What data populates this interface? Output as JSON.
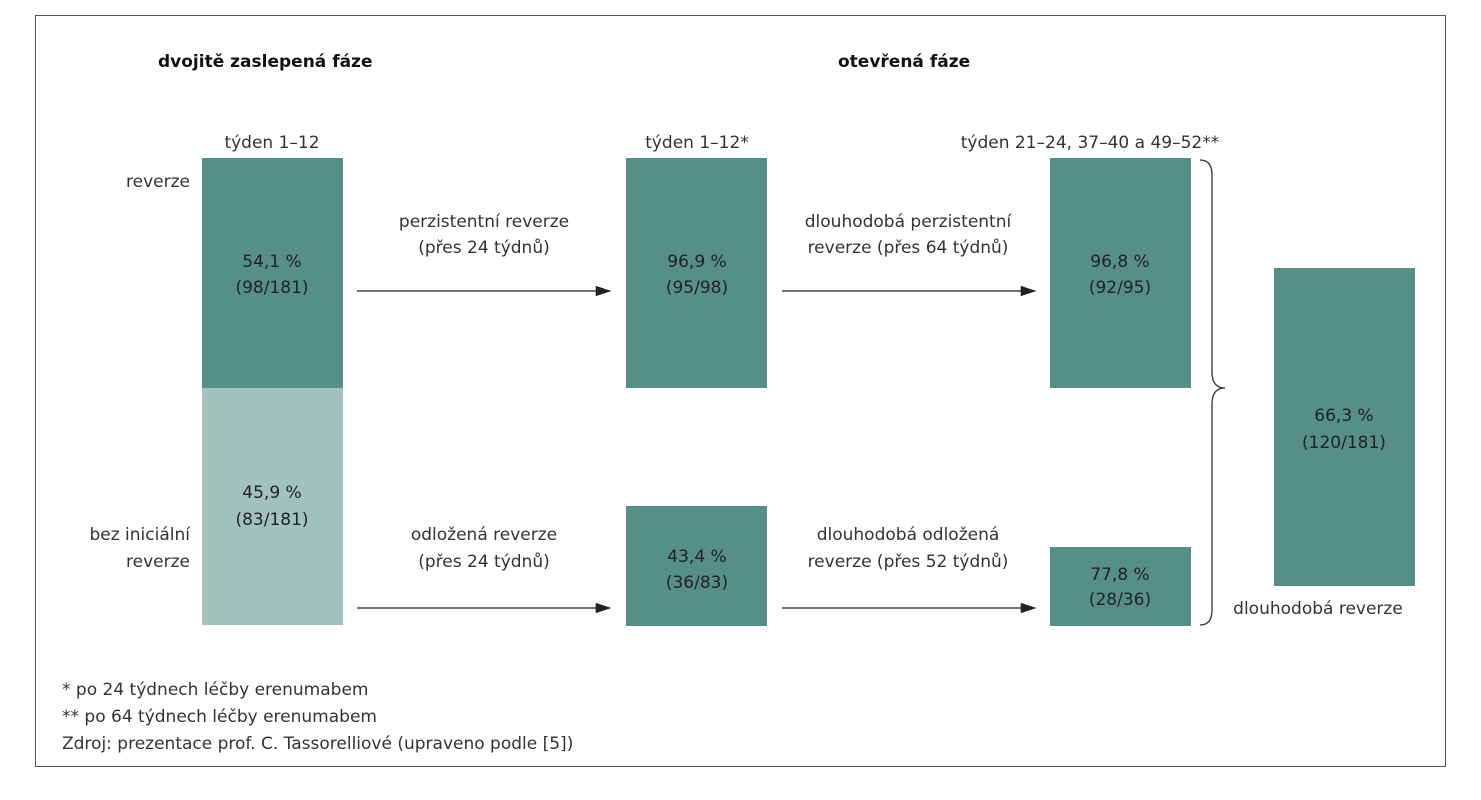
{
  "headers": [
    "dvojitě zaslepená fáze",
    "otevřená fáze"
  ],
  "columns": [
    "týden 1–12",
    "týden 1–12*",
    "týden 21–24, 37–40 a 49–52**"
  ],
  "rows": [
    [
      "reverze"
    ],
    [
      "bez iniciální",
      "reverze"
    ]
  ],
  "boxes": [
    [
      "54,1 %",
      "(98/181)"
    ],
    [
      "45,9 %",
      "(83/181)"
    ],
    [
      "96,9 %",
      "(95/98)"
    ],
    [
      "43,4 %",
      "(36/83)"
    ],
    [
      "96,8 %",
      "(92/95)"
    ],
    [
      "77,8 %",
      "(28/36)"
    ],
    [
      "66,3 %",
      "(120/181)"
    ]
  ],
  "arrows": [
    [
      "perzistentní reverze",
      "(přes 24 týdnů)"
    ],
    [
      "odložená reverze",
      "(přes 24 týdnů)"
    ],
    [
      "dlouhodobá perzistentní",
      "reverze (přes 64 týdnů)"
    ],
    [
      "dlouhodobá odložená",
      "reverze (přes 52 týdnů)"
    ]
  ],
  "final_label": "dlouhodobá reverze",
  "footnotes": [
    "* po 24 týdnech léčby erenumabem",
    "** po 64 týdnech léčby erenumabem",
    "Zdroj: prezentace prof. C. Tassorelliové (upraveno podle [5])"
  ]
}
